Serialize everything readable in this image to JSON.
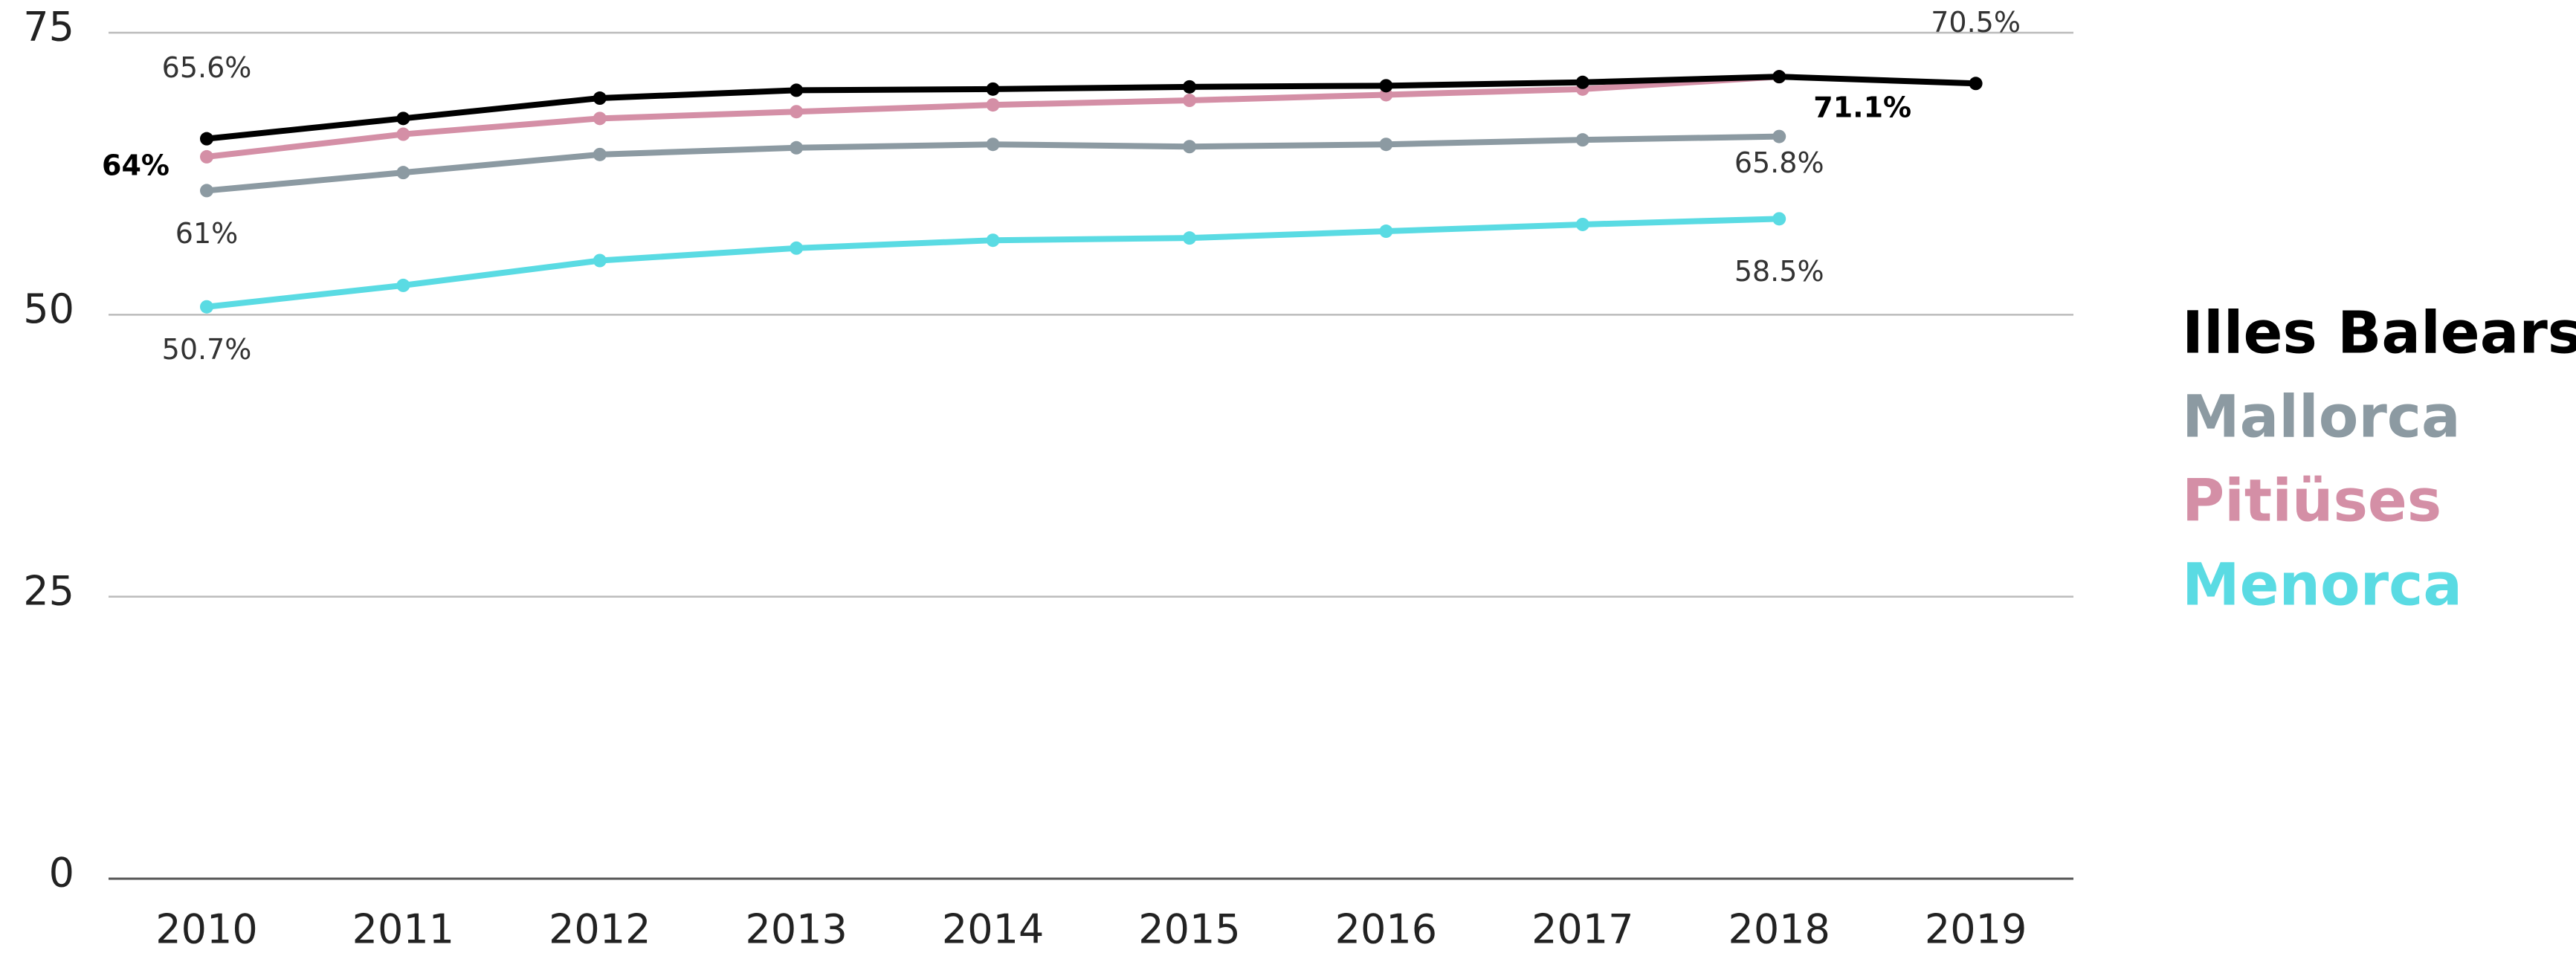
{
  "chart_data": {
    "type": "line",
    "categories": [
      "2010",
      "2011",
      "2012",
      "2013",
      "2014",
      "2015",
      "2016",
      "2017",
      "2018",
      "2019"
    ],
    "series": [
      {
        "name": "Illes Balears",
        "color": "#000000",
        "values": [
          65.6,
          67.4,
          69.2,
          69.9,
          70.0,
          70.2,
          70.3,
          70.6,
          71.1,
          70.5
        ],
        "value_labels": [
          "65.6%",
          null,
          null,
          null,
          null,
          null,
          null,
          null,
          null,
          "70.5%"
        ]
      },
      {
        "name": "Mallorca",
        "color": "#8c9aa2",
        "values": [
          61,
          62.6,
          64.2,
          64.8,
          65.1,
          64.9,
          65.1,
          65.5,
          65.8,
          null
        ],
        "value_labels": [
          "61%",
          null,
          null,
          null,
          null,
          null,
          null,
          null,
          "65.8%",
          null
        ]
      },
      {
        "name": "Pitiüses",
        "color": "#d48fa6",
        "values": [
          64,
          66.0,
          67.4,
          68.0,
          68.6,
          69.0,
          69.5,
          70.0,
          71.1,
          null
        ],
        "value_labels": [
          "64%",
          null,
          null,
          null,
          null,
          null,
          null,
          null,
          "71.1%",
          null
        ]
      },
      {
        "name": "Menorca",
        "color": "#5adbe3",
        "values": [
          50.7,
          52.6,
          54.8,
          55.9,
          56.6,
          56.8,
          57.4,
          58.0,
          58.5,
          null
        ],
        "value_labels": [
          "50.7%",
          null,
          null,
          null,
          null,
          null,
          null,
          null,
          "58.5%",
          null
        ]
      }
    ],
    "ylim": [
      0,
      75
    ],
    "yticks": [
      0,
      25,
      50,
      75
    ],
    "grid": true,
    "legend": "right"
  }
}
